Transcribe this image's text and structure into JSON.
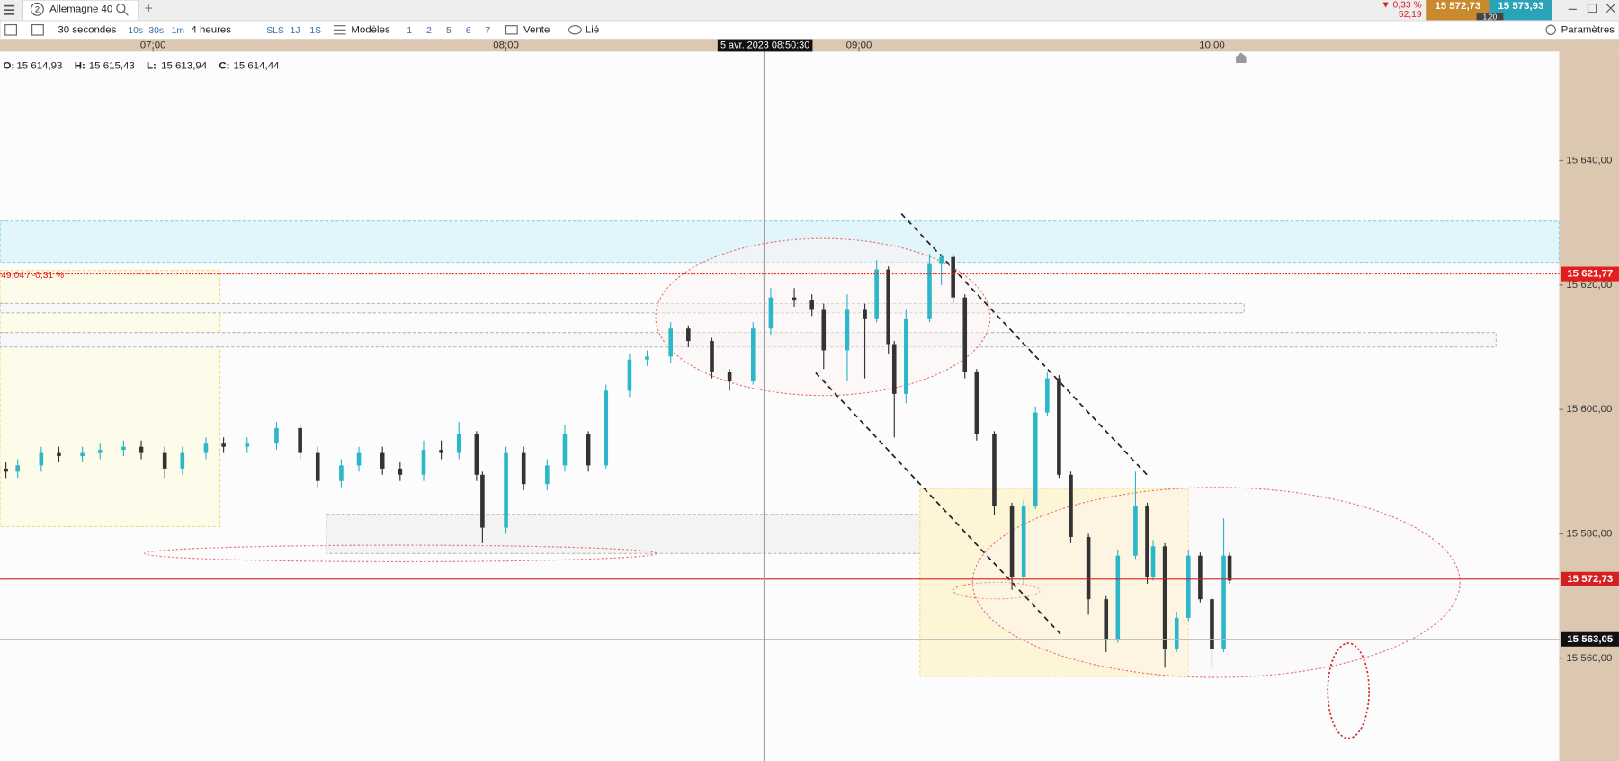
{
  "header": {
    "tab_number": "2",
    "instrument": "Allemagne 40",
    "new_tab": "+",
    "change_pct": "▼ 0,33 %",
    "change_pts": "52,19",
    "bid": "15 572,73",
    "spread": "1,20",
    "ask": "15 573,93"
  },
  "toolbar": {
    "interval": "30 secondes",
    "quick_intervals": [
      "10s",
      "30s",
      "1m"
    ],
    "period": "4 heures",
    "quick_periods": [
      "SLS",
      "1J",
      "1S"
    ],
    "templates": "Modèles",
    "layouts": [
      "1",
      "2",
      "5",
      "6",
      "7"
    ],
    "order": "Vente",
    "link": "Lié",
    "settings": "Paramètres"
  },
  "legend": {
    "o_label": "O:",
    "o": "15 614,93",
    "h_label": "H:",
    "h": "15 615,43",
    "l_label": "L:",
    "l": "15 613,94",
    "c_label": "C:",
    "c": "15 614,44"
  },
  "crosshair_label": "5 avr. 2023 08:50:30",
  "annotation": "49,04 / -0,31 %",
  "chart_data": {
    "type": "candlestick",
    "xlim": [
      "06:34",
      "10:59"
    ],
    "xticks": [
      "07:00",
      "08:00",
      "09:00",
      "10:00"
    ],
    "ylim": [
      15543.5,
      15657.5
    ],
    "yticks": [
      {
        "value": 15560,
        "label": "15 560,00"
      },
      {
        "value": 15580,
        "label": "15 580,00"
      },
      {
        "value": 15600,
        "label": "15 600,00"
      },
      {
        "value": 15620,
        "label": "15 620,00"
      },
      {
        "value": 15640,
        "label": "15 640,00"
      }
    ],
    "grid": false,
    "up_color": "#2bb6c9",
    "down_color": "#333333",
    "candles": [
      {
        "t": "06:35",
        "o": 15590.5,
        "h": 15591.5,
        "l": 15589,
        "c": 15590
      },
      {
        "t": "06:37",
        "o": 15590,
        "h": 15592,
        "l": 15589,
        "c": 15591
      },
      {
        "t": "06:41",
        "o": 15591,
        "h": 15594,
        "l": 15590,
        "c": 15593
      },
      {
        "t": "06:44",
        "o": 15593,
        "h": 15594,
        "l": 15591.5,
        "c": 15592.5
      },
      {
        "t": "06:48",
        "o": 15592.5,
        "h": 15594,
        "l": 15591.5,
        "c": 15593
      },
      {
        "t": "06:51",
        "o": 15593,
        "h": 15594.5,
        "l": 15592,
        "c": 15593.5
      },
      {
        "t": "06:55",
        "o": 15593.5,
        "h": 15595,
        "l": 15592.5,
        "c": 15594
      },
      {
        "t": "06:58",
        "o": 15594,
        "h": 15595,
        "l": 15592,
        "c": 15593
      },
      {
        "t": "07:02",
        "o": 15593,
        "h": 15594,
        "l": 15589,
        "c": 15590.5
      },
      {
        "t": "07:05",
        "o": 15590.5,
        "h": 15594,
        "l": 15589.5,
        "c": 15593
      },
      {
        "t": "07:09",
        "o": 15593,
        "h": 15595.5,
        "l": 15592,
        "c": 15594.5
      },
      {
        "t": "07:12",
        "o": 15594.5,
        "h": 15595.5,
        "l": 15593,
        "c": 15594
      },
      {
        "t": "07:16",
        "o": 15594,
        "h": 15595.5,
        "l": 15593,
        "c": 15594.5
      },
      {
        "t": "07:21",
        "o": 15594.5,
        "h": 15598,
        "l": 15593.5,
        "c": 15597
      },
      {
        "t": "07:25",
        "o": 15597,
        "h": 15597.5,
        "l": 15592,
        "c": 15593
      },
      {
        "t": "07:28",
        "o": 15593,
        "h": 15594,
        "l": 15587.5,
        "c": 15588.5
      },
      {
        "t": "07:32",
        "o": 15588.5,
        "h": 15592,
        "l": 15587.5,
        "c": 15591
      },
      {
        "t": "07:35",
        "o": 15591,
        "h": 15594,
        "l": 15590,
        "c": 15593
      },
      {
        "t": "07:39",
        "o": 15593,
        "h": 15594,
        "l": 15589.5,
        "c": 15590.5
      },
      {
        "t": "07:42",
        "o": 15590.5,
        "h": 15591.5,
        "l": 15588.5,
        "c": 15589.5
      },
      {
        "t": "07:46",
        "o": 15589.5,
        "h": 15595,
        "l": 15588.5,
        "c": 15593.5
      },
      {
        "t": "07:49",
        "o": 15593.5,
        "h": 15595,
        "l": 15592,
        "c": 15593
      },
      {
        "t": "07:52",
        "o": 15593,
        "h": 15598,
        "l": 15592,
        "c": 15596
      },
      {
        "t": "07:55",
        "o": 15596,
        "h": 15596.5,
        "l": 15588.5,
        "c": 15589.5
      },
      {
        "t": "07:56",
        "o": 15589.5,
        "h": 15590,
        "l": 15578.5,
        "c": 15581
      },
      {
        "t": "08:00",
        "o": 15581,
        "h": 15594,
        "l": 15580,
        "c": 15593
      },
      {
        "t": "08:03",
        "o": 15593,
        "h": 15594,
        "l": 15587,
        "c": 15588
      },
      {
        "t": "08:07",
        "o": 15588,
        "h": 15592,
        "l": 15587,
        "c": 15591
      },
      {
        "t": "08:10",
        "o": 15591,
        "h": 15597.5,
        "l": 15590,
        "c": 15596
      },
      {
        "t": "08:14",
        "o": 15596,
        "h": 15596.5,
        "l": 15590,
        "c": 15591
      },
      {
        "t": "08:17",
        "o": 15591,
        "h": 15604,
        "l": 15590.5,
        "c": 15603
      },
      {
        "t": "08:21",
        "o": 15603,
        "h": 15609,
        "l": 15602,
        "c": 15608
      },
      {
        "t": "08:24",
        "o": 15608,
        "h": 15609.5,
        "l": 15607,
        "c": 15608.5
      },
      {
        "t": "08:28",
        "o": 15608.5,
        "h": 15614,
        "l": 15607.5,
        "c": 15613
      },
      {
        "t": "08:31",
        "o": 15613,
        "h": 15613.5,
        "l": 15610,
        "c": 15611
      },
      {
        "t": "08:35",
        "o": 15611,
        "h": 15611.5,
        "l": 15605,
        "c": 15606
      },
      {
        "t": "08:38",
        "o": 15606,
        "h": 15606.5,
        "l": 15603,
        "c": 15604.5
      },
      {
        "t": "08:42",
        "o": 15604.5,
        "h": 15614,
        "l": 15604,
        "c": 15613
      },
      {
        "t": "08:45",
        "o": 15613,
        "h": 15619.5,
        "l": 15612,
        "c": 15618
      },
      {
        "t": "08:49",
        "o": 15618,
        "h": 15619.5,
        "l": 15616.5,
        "c": 15617.5
      },
      {
        "t": "08:52",
        "o": 15617.5,
        "h": 15618.5,
        "l": 15615,
        "c": 15616
      },
      {
        "t": "08:54",
        "o": 15616,
        "h": 15617,
        "l": 15606.5,
        "c": 15609.5
      },
      {
        "t": "08:58",
        "o": 15609.5,
        "h": 15618.5,
        "l": 15604.5,
        "c": 15616
      },
      {
        "t": "09:01",
        "o": 15616,
        "h": 15617,
        "l": 15605,
        "c": 15614.5
      },
      {
        "t": "09:03",
        "o": 15614.5,
        "h": 15624,
        "l": 15614,
        "c": 15622.5
      },
      {
        "t": "09:05",
        "o": 15622.5,
        "h": 15623,
        "l": 15609,
        "c": 15610.5
      },
      {
        "t": "09:06",
        "o": 15610.5,
        "h": 15611,
        "l": 15595.5,
        "c": 15602.5
      },
      {
        "t": "09:08",
        "o": 15602.5,
        "h": 15616,
        "l": 15601,
        "c": 15614.5
      },
      {
        "t": "09:12",
        "o": 15614.5,
        "h": 15625,
        "l": 15614,
        "c": 15623.5
      },
      {
        "t": "09:14",
        "o": 15623.5,
        "h": 15625,
        "l": 15620,
        "c": 15624.5
      },
      {
        "t": "09:16",
        "o": 15624.5,
        "h": 15625,
        "l": 15617,
        "c": 15618
      },
      {
        "t": "09:18",
        "o": 15618,
        "h": 15618.5,
        "l": 15605,
        "c": 15606
      },
      {
        "t": "09:20",
        "o": 15606,
        "h": 15606.5,
        "l": 15595,
        "c": 15596
      },
      {
        "t": "09:23",
        "o": 15596,
        "h": 15596.5,
        "l": 15583,
        "c": 15584.5
      },
      {
        "t": "09:26",
        "o": 15584.5,
        "h": 15585,
        "l": 15571,
        "c": 15573
      },
      {
        "t": "09:28",
        "o": 15573,
        "h": 15585.5,
        "l": 15572,
        "c": 15584.5
      },
      {
        "t": "09:30",
        "o": 15584.5,
        "h": 15600.5,
        "l": 15584,
        "c": 15599.5
      },
      {
        "t": "09:32",
        "o": 15599.5,
        "h": 15606,
        "l": 15599,
        "c": 15605
      },
      {
        "t": "09:34",
        "o": 15605,
        "h": 15605.5,
        "l": 15589,
        "c": 15589.5
      },
      {
        "t": "09:36",
        "o": 15589.5,
        "h": 15590,
        "l": 15578.5,
        "c": 15579.5
      },
      {
        "t": "09:39",
        "o": 15579.5,
        "h": 15580,
        "l": 15567,
        "c": 15569.5
      },
      {
        "t": "09:42",
        "o": 15569.5,
        "h": 15570,
        "l": 15561,
        "c": 15563
      },
      {
        "t": "09:44",
        "o": 15563,
        "h": 15577.5,
        "l": 15562.5,
        "c": 15576.5
      },
      {
        "t": "09:47",
        "o": 15576.5,
        "h": 15590,
        "l": 15576,
        "c": 15584.5
      },
      {
        "t": "09:49",
        "o": 15584.5,
        "h": 15585,
        "l": 15572,
        "c": 15573
      },
      {
        "t": "09:50",
        "o": 15573,
        "h": 15579,
        "l": 15572.5,
        "c": 15578
      },
      {
        "t": "09:52",
        "o": 15578,
        "h": 15578.5,
        "l": 15558.5,
        "c": 15561.5
      },
      {
        "t": "09:54",
        "o": 15561.5,
        "h": 15567.5,
        "l": 15561,
        "c": 15566.5
      },
      {
        "t": "09:56",
        "o": 15566.5,
        "h": 15577.5,
        "l": 15566,
        "c": 15576.5
      },
      {
        "t": "09:58",
        "o": 15576.5,
        "h": 15577,
        "l": 15569,
        "c": 15569.5
      },
      {
        "t": "10:00",
        "o": 15569.5,
        "h": 15570,
        "l": 15558.5,
        "c": 15561.5
      },
      {
        "t": "10:02",
        "o": 15561.5,
        "h": 15582.5,
        "l": 15561,
        "c": 15576.5
      },
      {
        "t": "10:03",
        "o": 15576.5,
        "h": 15577,
        "l": 15572,
        "c": 15572.5
      }
    ],
    "price_lines": [
      {
        "value": 15621.77,
        "label": "15 621,77",
        "color": "#e31c1c",
        "style": "dotted"
      },
      {
        "value": 15572.73,
        "label": "15 572,73",
        "color": "#d42020",
        "style": "solid"
      },
      {
        "value": 15563.05,
        "label": "15 563,05",
        "color": "#111111",
        "style": "solid"
      }
    ]
  }
}
